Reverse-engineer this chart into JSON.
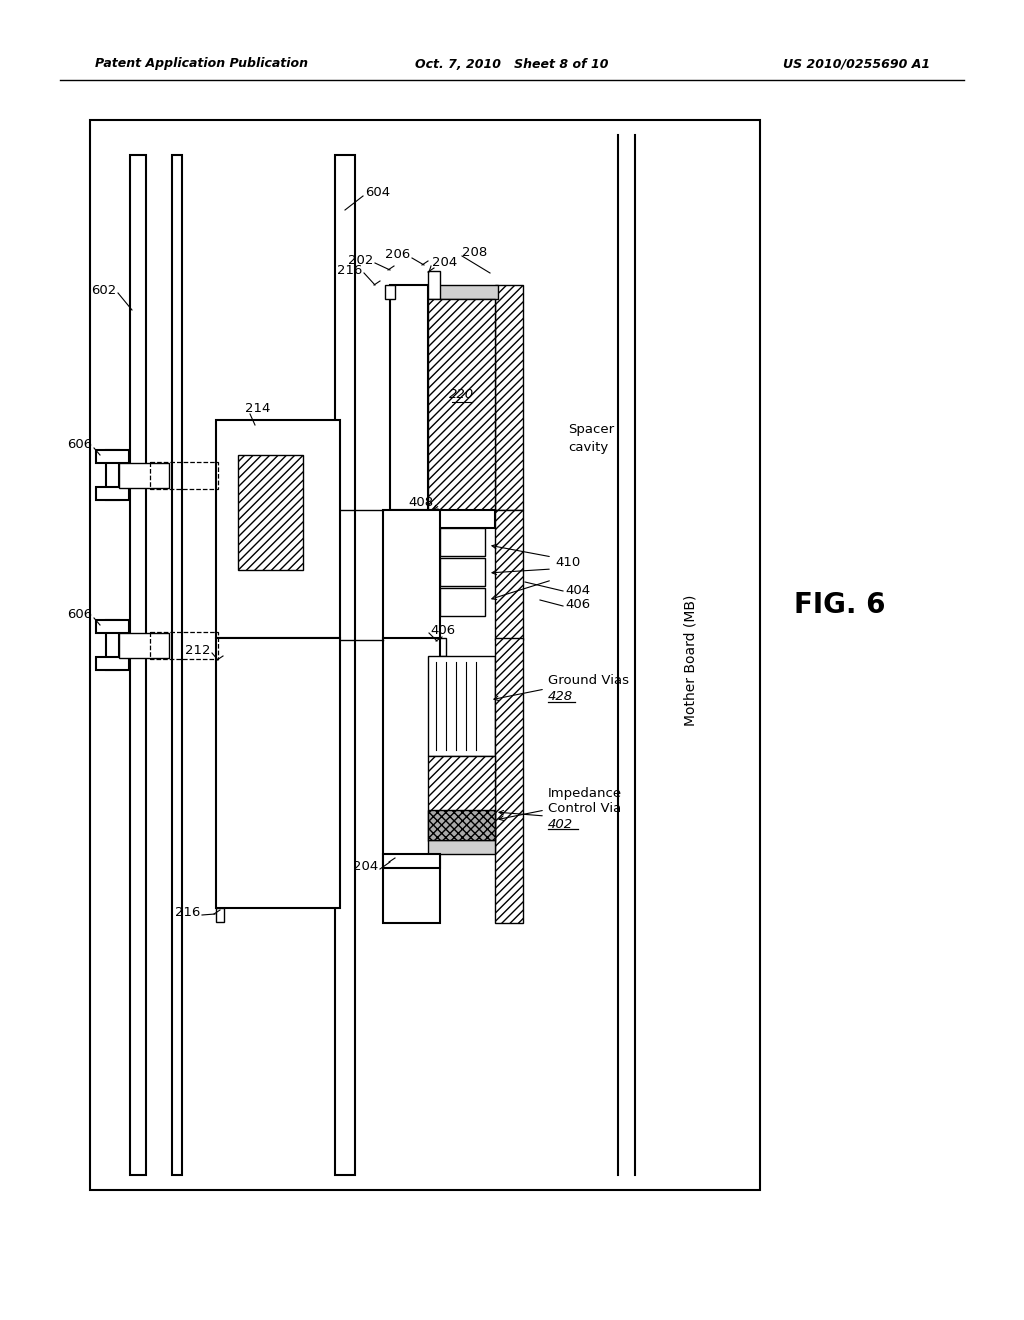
{
  "bg_color": "#ffffff",
  "header_left": "Patent Application Publication",
  "header_center": "Oct. 7, 2010   Sheet 8 of 10",
  "header_right": "US 2010/0255690 A1",
  "fig_label": "FIG. 6"
}
